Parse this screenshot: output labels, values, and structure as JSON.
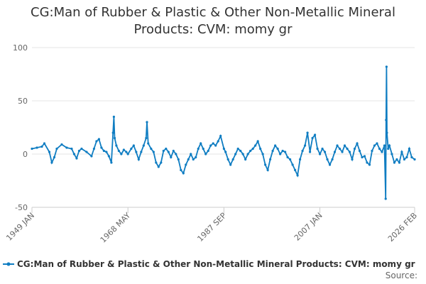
{
  "chart_data": {
    "type": "line",
    "title": "CG:Man of Rubber & Plastic & Other Non-Metallic Mineral Products: CVM: momy gr",
    "x": [
      "1949 JAN",
      "1950 JAN",
      "1951 JAN",
      "1951 JUL",
      "1952 JUL",
      "1953 JAN",
      "1953 JUL",
      "1954 JAN",
      "1955 JAN",
      "1956 JAN",
      "1957 JAN",
      "1957 JUL",
      "1958 JAN",
      "1958 JUL",
      "1959 JAN",
      "1960 JAN",
      "1961 JAN",
      "1961 JUL",
      "1962 JAN",
      "1962 JUL",
      "1963 JAN",
      "1963 JUL",
      "1964 JAN",
      "1964 JUL",
      "1965 JAN",
      "1965 MAY",
      "1965 JUL",
      "1965 SEP",
      "1966 JAN",
      "1966 JUL",
      "1967 JAN",
      "1967 JUL",
      "1968 JAN",
      "1968 MAY",
      "1969 JAN",
      "1969 JUL",
      "1970 JAN",
      "1970 JUL",
      "1971 JAN",
      "1971 JUL",
      "1972 JAN",
      "1972 MAR",
      "1972 JUN",
      "1973 JAN",
      "1973 JUL",
      "1974 JAN",
      "1974 JUL",
      "1975 JAN",
      "1975 JUL",
      "1976 JAN",
      "1976 JUL",
      "1977 JAN",
      "1977 JUL",
      "1978 JAN",
      "1978 JUL",
      "1979 JAN",
      "1979 JUL",
      "1980 JAN",
      "1980 JUL",
      "1981 JAN",
      "1981 JUL",
      "1982 JAN",
      "1982 JUL",
      "1983 JAN",
      "1983 JUL",
      "1984 JAN",
      "1984 JUL",
      "1985 JAN",
      "1985 JUL",
      "1986 JAN",
      "1986 JUL",
      "1987 JAN",
      "1987 SEP",
      "1988 JAN",
      "1988 JUL",
      "1989 JAN",
      "1989 JUL",
      "1990 JAN",
      "1990 JUL",
      "1991 JAN",
      "1991 JUL",
      "1992 JAN",
      "1992 JUL",
      "1993 JAN",
      "1993 JUL",
      "1994 JAN",
      "1994 JUL",
      "1995 JAN",
      "1995 JUL",
      "1996 JAN",
      "1996 JUL",
      "1997 JAN",
      "1997 JUL",
      "1998 JAN",
      "1998 JUL",
      "1999 JAN",
      "1999 JUL",
      "2000 JAN",
      "2000 JUL",
      "2001 JAN",
      "2001 JUL",
      "2002 JAN",
      "2002 JUL",
      "2003 JAN",
      "2003 JUL",
      "2004 JAN",
      "2004 JUL",
      "2005 JAN",
      "2005 JUL",
      "2006 JAN",
      "2006 JUL",
      "2007 JAN",
      "2007 JUL",
      "2008 JAN",
      "2008 JUL",
      "2009 JAN",
      "2009 JUL",
      "2010 JAN",
      "2010 JUL",
      "2011 JAN",
      "2011 JUL",
      "2012 JAN",
      "2012 JUL",
      "2013 JAN",
      "2013 JUL",
      "2014 JAN",
      "2014 JUL",
      "2015 JAN",
      "2015 JUL",
      "2016 JAN",
      "2016 JUL",
      "2017 JAN",
      "2017 JUL",
      "2018 JAN",
      "2018 JUL",
      "2019 JAN",
      "2019 JUL",
      "2020 JAN",
      "2020 APR",
      "2020 MAY",
      "2020 JUN",
      "2020 JUL",
      "2020 OCT",
      "2021 JAN",
      "2021 JUL",
      "2022 JAN",
      "2022 JUL",
      "2023 JAN",
      "2023 JUL",
      "2024 JAN",
      "2024 JUL",
      "2025 JAN",
      "2025 JUL",
      "2026 FEB"
    ],
    "series": [
      {
        "name": "CG:Man of Rubber & Plastic & Other Non-Metallic Mineral Products: CVM: momy gr",
        "color": "#0f7dc2",
        "values": [
          5,
          6,
          7,
          10,
          2,
          -8,
          -3,
          5,
          9,
          6,
          5,
          0,
          -4,
          3,
          5,
          2,
          -2,
          5,
          12,
          14,
          6,
          3,
          2,
          -2,
          -8,
          20,
          35,
          15,
          8,
          3,
          0,
          4,
          2,
          0,
          5,
          8,
          2,
          -5,
          2,
          8,
          15,
          30,
          10,
          5,
          2,
          -8,
          -12,
          -8,
          3,
          5,
          2,
          -3,
          3,
          0,
          -5,
          -15,
          -18,
          -10,
          -5,
          0,
          -5,
          -3,
          5,
          10,
          5,
          0,
          3,
          8,
          10,
          8,
          12,
          17,
          5,
          2,
          -5,
          -10,
          -5,
          0,
          5,
          3,
          0,
          -5,
          0,
          3,
          5,
          8,
          12,
          5,
          0,
          -10,
          -15,
          -5,
          3,
          8,
          5,
          0,
          3,
          2,
          -3,
          -5,
          -10,
          -15,
          -20,
          -5,
          3,
          8,
          20,
          2,
          15,
          18,
          5,
          0,
          5,
          2,
          -5,
          -10,
          -5,
          2,
          8,
          5,
          2,
          8,
          5,
          2,
          -5,
          5,
          10,
          3,
          -3,
          -2,
          -8,
          -10,
          3,
          8,
          10,
          5,
          2,
          8,
          -42,
          32,
          82,
          20,
          5,
          8,
          0,
          -8,
          -5,
          -8,
          2,
          -5,
          -3,
          5,
          -3,
          -5
        ]
      }
    ],
    "ylim": [
      -50,
      100
    ],
    "yticks": [
      -50,
      0,
      50,
      100
    ],
    "xlim": [
      "1949 JAN",
      "2026 FEB"
    ],
    "xticks": [
      "1949 JAN",
      "1968 MAY",
      "1987 SEP",
      "2007 JAN",
      "2026 FEB"
    ],
    "grid": true,
    "legend": "bottom",
    "source": "Source:"
  }
}
